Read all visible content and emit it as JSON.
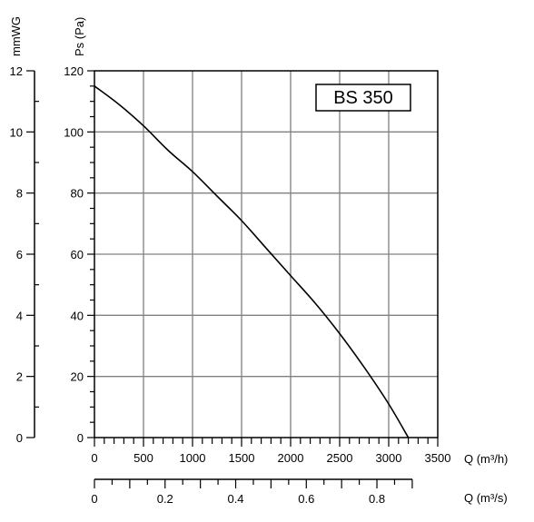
{
  "chart_data": {
    "type": "line",
    "model_label": "BS 350",
    "x_primary": {
      "label": "Q (m³/h)",
      "min": 0,
      "max": 3500,
      "major_step": 500,
      "minor_step": 100,
      "tick_labels": [
        "0",
        "500",
        "1000",
        "1500",
        "2000",
        "2500",
        "3000",
        "3500"
      ]
    },
    "x_secondary": {
      "label": "Q (m³/s)",
      "min": 0,
      "max": 0.9,
      "major_step": 0.2,
      "minor_step": 0.1,
      "tick_labels": [
        "0",
        "0.2",
        "0.4",
        "0.6",
        "0.8"
      ]
    },
    "y_primary": {
      "label": "Ps (Pa)",
      "min": 0,
      "max": 120,
      "major_step": 20,
      "minor_step": 5,
      "tick_labels": [
        "0",
        "20",
        "40",
        "60",
        "80",
        "100",
        "120"
      ]
    },
    "y_secondary": {
      "label": "mmWG",
      "min": 0,
      "max": 12,
      "major_step": 2,
      "minor_step": 1,
      "tick_labels": [
        "0",
        "2",
        "4",
        "6",
        "8",
        "10",
        "12"
      ]
    },
    "grid": true,
    "series": [
      {
        "x": [
          0,
          250,
          500,
          750,
          1000,
          1250,
          1500,
          1750,
          2000,
          2250,
          2500,
          2750,
          3000,
          3200
        ],
        "values": [
          115,
          109,
          102,
          94,
          87,
          79,
          71,
          62,
          53,
          44,
          34,
          23,
          11,
          0
        ]
      }
    ],
    "colors": {
      "line": "#000000",
      "grid": "#808080",
      "axis": "#000000"
    }
  }
}
